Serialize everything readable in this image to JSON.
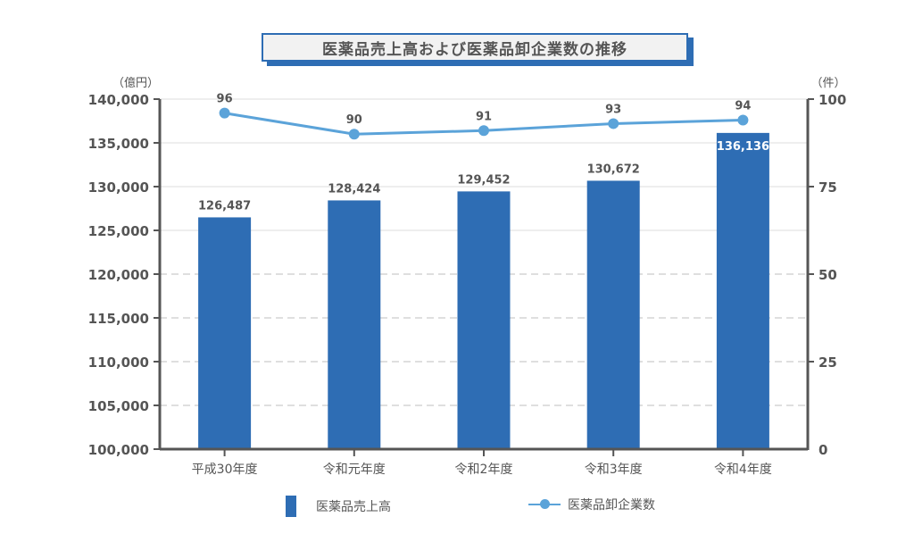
{
  "title": "医薬品売上高および医薬品卸企業数の推移",
  "left_axis_unit": "（億円）",
  "right_axis_unit": "（件）",
  "colors": {
    "bar": "#2e6db4",
    "line": "#5ba3d9",
    "axis": "#555555",
    "grid": "#d9d9d9",
    "title_bg": "#f2f2f2"
  },
  "legend": {
    "bar_label": "医薬品売上高",
    "line_label": "医薬品卸企業数"
  },
  "chart_data": {
    "type": "bar+line",
    "title": "医薬品売上高および医薬品卸企業数の推移",
    "categories": [
      "平成30年度",
      "令和元年度",
      "令和2年度",
      "令和3年度",
      "令和4年度"
    ],
    "series": [
      {
        "name": "医薬品売上高",
        "type": "bar",
        "axis": "left",
        "values": [
          126487,
          128424,
          129452,
          130672,
          136136
        ],
        "labels": [
          "126,487",
          "128,424",
          "129,452",
          "130,672",
          "136,136"
        ]
      },
      {
        "name": "医薬品卸企業数",
        "type": "line",
        "axis": "right",
        "values": [
          96,
          90,
          91,
          93,
          94
        ],
        "labels": [
          "96",
          "90",
          "91",
          "93",
          "94"
        ]
      }
    ],
    "ylabel": "（億円）",
    "y2label": "（件）",
    "ylim": [
      100000,
      140000
    ],
    "y2lim": [
      0,
      100
    ],
    "yticks": [
      "100,000",
      "105,000",
      "110,000",
      "115,000",
      "120,000",
      "125,000",
      "130,000",
      "135,000",
      "140,000"
    ],
    "y2ticks": [
      "0",
      "25",
      "50",
      "75",
      "100"
    ],
    "grid": true,
    "legend_position": "bottom"
  }
}
